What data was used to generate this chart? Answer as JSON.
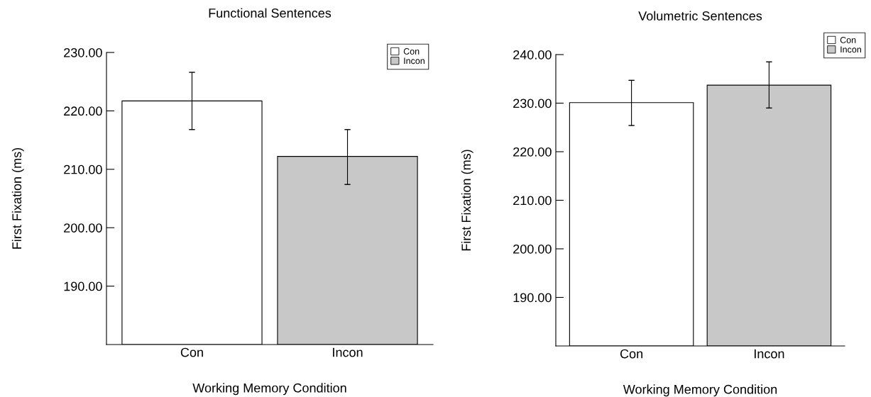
{
  "chart_data": [
    {
      "type": "bar",
      "title": "Functional Sentences",
      "xlabel": "Working Memory Condition",
      "ylabel": "First Fixation (ms)",
      "categories": [
        "Con",
        "Incon"
      ],
      "series": [
        {
          "name": "Con",
          "color": "#ffffff",
          "values": [
            221.7,
            null
          ],
          "errors": [
            [
              216.8,
              226.6
            ],
            null
          ]
        },
        {
          "name": "Incon",
          "color": "#c8c8c8",
          "values": [
            null,
            212.2
          ],
          "errors": [
            null,
            [
              207.4,
              216.8
            ]
          ]
        }
      ],
      "ylim": [
        180,
        230
      ],
      "yticks": [
        {
          "value": 190,
          "label": "190.00"
        },
        {
          "value": 200,
          "label": "200.00"
        },
        {
          "value": 210,
          "label": "210.00"
        },
        {
          "value": 220,
          "label": "220.00"
        },
        {
          "value": 230,
          "label": "230.00"
        }
      ],
      "grid": false,
      "legend": "top right"
    },
    {
      "type": "bar",
      "title": "Volumetric Sentences",
      "xlabel": "Working Memory Condition",
      "ylabel": "First Fixation (ms)",
      "categories": [
        "Con",
        "Incon"
      ],
      "series": [
        {
          "name": "Con",
          "color": "#ffffff",
          "values": [
            230.1,
            null
          ],
          "errors": [
            [
              225.4,
              234.7
            ],
            null
          ]
        },
        {
          "name": "Incon",
          "color": "#c8c8c8",
          "values": [
            null,
            233.7
          ],
          "errors": [
            null,
            [
              229.0,
              238.5
            ]
          ]
        }
      ],
      "ylim": [
        180,
        240
      ],
      "yticks": [
        {
          "value": 190,
          "label": "190.00"
        },
        {
          "value": 200,
          "label": "200.00"
        },
        {
          "value": 210,
          "label": "210.00"
        },
        {
          "value": 220,
          "label": "220.00"
        },
        {
          "value": 230,
          "label": "230.00"
        },
        {
          "value": 240,
          "label": "240.00"
        }
      ],
      "grid": false,
      "legend": "top right"
    }
  ]
}
